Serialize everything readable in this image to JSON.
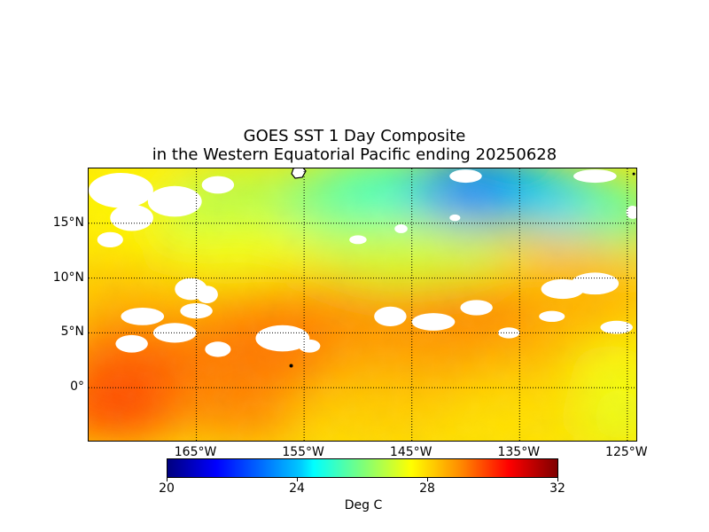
{
  "title": {
    "line1": "GOES SST 1 Day Composite",
    "line2": "in the Western Equatorial Pacific ending 20250628"
  },
  "map": {
    "variable": "Sea Surface Temperature",
    "lon_range": [
      -175,
      -124
    ],
    "lat_range": [
      -5,
      20
    ],
    "grid": true,
    "grid_style": "dotted",
    "land_color": "#000000",
    "nodata_color": "#ffffff",
    "lat_ticks": [
      {
        "value": 15,
        "label": "15°N"
      },
      {
        "value": 10,
        "label": "10°N"
      },
      {
        "value": 5,
        "label": "5°N"
      },
      {
        "value": 0,
        "label": "0°"
      }
    ],
    "lon_ticks": [
      {
        "value": -165,
        "label": "165°W"
      },
      {
        "value": -155,
        "label": "155°W"
      },
      {
        "value": -145,
        "label": "145°W"
      },
      {
        "value": -135,
        "label": "135°W"
      },
      {
        "value": -125,
        "label": "125°W"
      }
    ]
  },
  "colorbar": {
    "vmin": 20,
    "vmax": 32,
    "ticks": [
      {
        "value": 20,
        "label": "20"
      },
      {
        "value": 24,
        "label": "24"
      },
      {
        "value": 28,
        "label": "28"
      },
      {
        "value": 32,
        "label": "32"
      }
    ],
    "unit_label": "Deg C",
    "colormap": "jet"
  },
  "chart_data": {
    "type": "heatmap",
    "title": "GOES SST 1 Day Composite in the Western Equatorial Pacific ending 20250628",
    "xlabel": "",
    "ylabel": "",
    "xlim": [
      -175,
      -124
    ],
    "ylim": [
      -5,
      20
    ],
    "zlim": [
      20,
      32
    ],
    "z_label": "Deg C",
    "sst_regions_degC": [
      {
        "region": "northwest corner",
        "approx_sst": 27.5
      },
      {
        "region": "north-central",
        "approx_sst": 25.5
      },
      {
        "region": "northeast",
        "approx_sst": 23.0
      },
      {
        "region": "central 10°N",
        "approx_sst": 27.5
      },
      {
        "region": "5°N band",
        "approx_sst": 29.0
      },
      {
        "region": "equator west",
        "approx_sst": 29.5
      },
      {
        "region": "southeast",
        "approx_sst": 27.5
      }
    ]
  }
}
